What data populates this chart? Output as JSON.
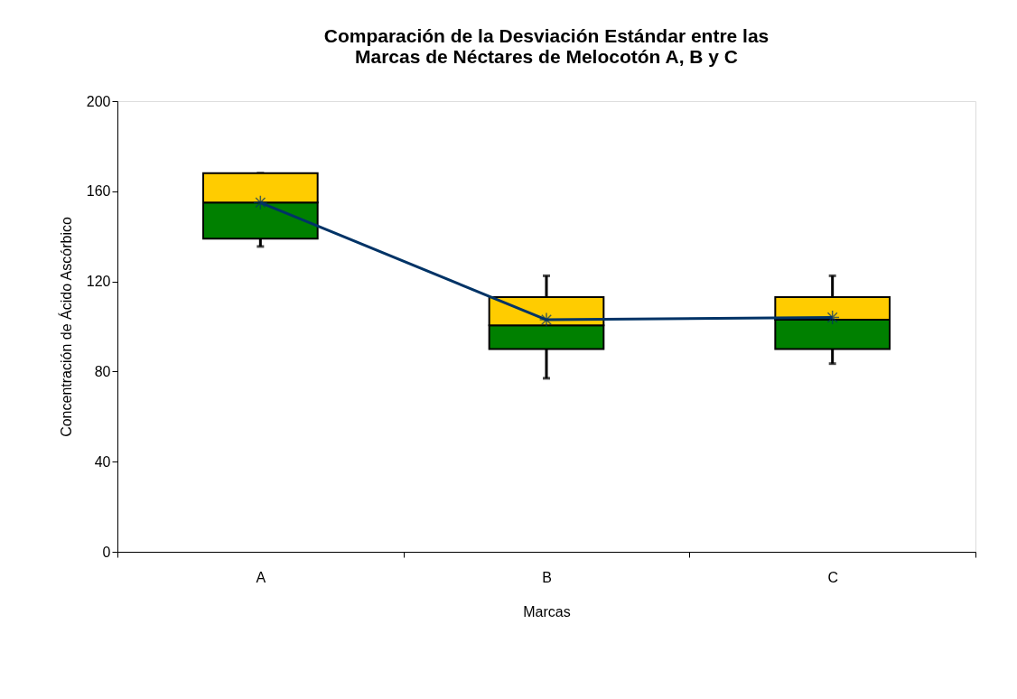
{
  "chart_data": {
    "type": "box",
    "title": [
      "Comparación de la Desviación Estándar entre las",
      "Marcas de Néctares de Melocotón A, B y C"
    ],
    "xlabel": "Marcas",
    "ylabel": "Concentración de Ácido Ascórbico",
    "categories": [
      "A",
      "B",
      "C"
    ],
    "ylim": [
      0,
      200
    ],
    "yticks": [
      0,
      40,
      80,
      120,
      160,
      200
    ],
    "grid": false,
    "marker": "cross",
    "series": [
      {
        "colors": [
          [
            "#008000",
            "#ffcc00"
          ],
          [
            "#008000",
            "#ffcc00"
          ],
          [
            "#008000",
            "#ffcc00"
          ]
        ],
        "boxes": [
          {
            "low": 135.5,
            "q1": 139,
            "median": 155,
            "q3": 168,
            "high": 168
          },
          {
            "low": 77,
            "q1": 90,
            "median": 100.5,
            "q3": 113,
            "high": 122.5
          },
          {
            "low": 83.5,
            "q1": 90,
            "median": 103,
            "q3": 113,
            "high": 122.5
          }
        ]
      },
      {
        "type": "line",
        "color": "#003366",
        "values": [
          155,
          103,
          104
        ]
      }
    ]
  }
}
